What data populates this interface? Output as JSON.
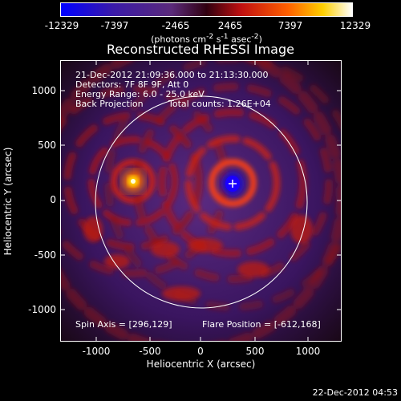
{
  "colorbar": {
    "tick_labels": [
      "-12329",
      "-7397",
      "-2465",
      "2465",
      "7397",
      "12329"
    ],
    "units_html": "(photons cm<sup>-2</sup> s<sup>-1</sup> asec<sup>-2</sup>)"
  },
  "title": "Reconstructed RHESSI Image",
  "annotations": {
    "time_range": "21-Dec-2012 21:09:36.000 to 21:13:30.000",
    "detectors": "Detectors: 7F 8F 9F, Att 0",
    "energy": "Energy Range: 6.0 - 25.0 keV",
    "method": "Back Projection",
    "counts": "Total counts: 1.26E+04",
    "spin_axis": "Spin Axis = [296,129]",
    "flare_position": "Flare Position = [-612,168]"
  },
  "axes": {
    "xlabel": "Heliocentric X (arcsec)",
    "ylabel": "Heliocentric Y (arcsec)",
    "x_ticks": [
      "-1000",
      "-500",
      "0",
      "500",
      "1000"
    ],
    "y_ticks": [
      "1000",
      "500",
      "0",
      "-500",
      "-1000"
    ]
  },
  "timestamp": "22-Dec-2012 04:53",
  "colors": {
    "background": "#000000",
    "colormap": [
      "#0000ff",
      "#3a1aa8",
      "#4a2a80",
      "#8a1020",
      "#e02010",
      "#ff8000",
      "#ffd800",
      "#ffffff"
    ]
  }
}
